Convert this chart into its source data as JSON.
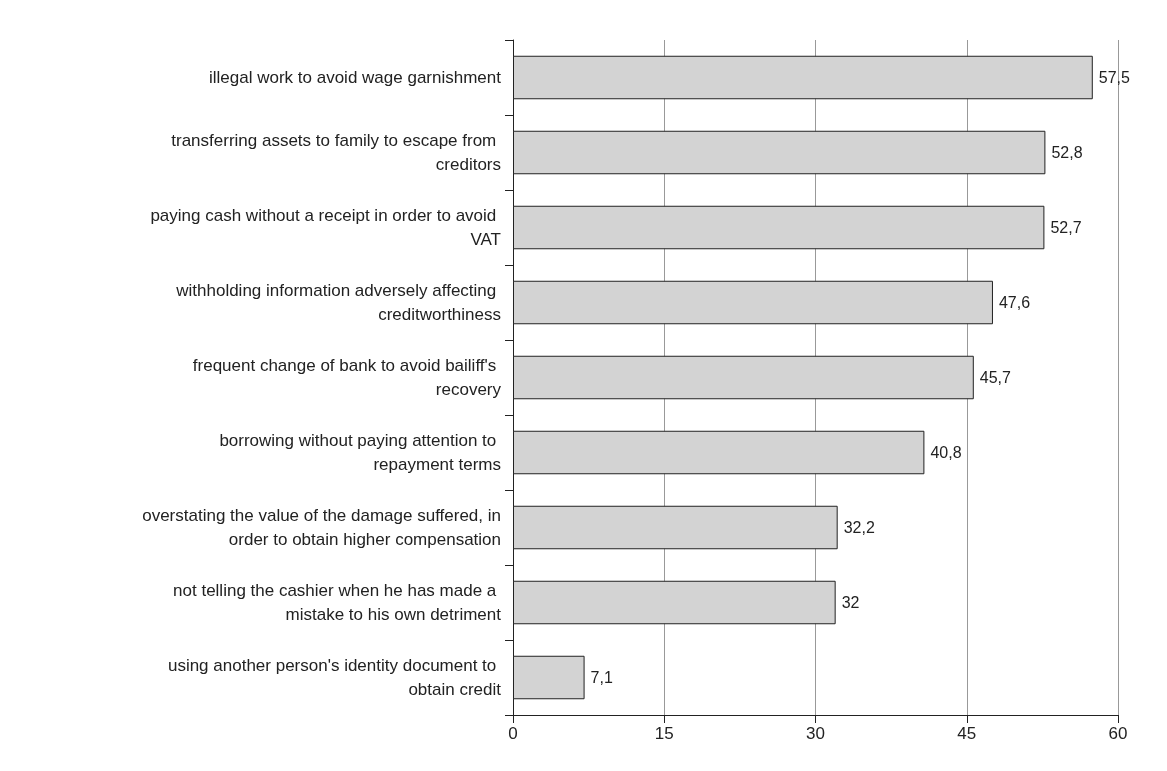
{
  "chart_data": {
    "type": "bar",
    "orientation": "horizontal",
    "categories": [
      "illegal work to avoid wage garnishment",
      "transferring assets to family to escape from creditors",
      "paying cash without a receipt in order to avoid VAT",
      "withholding information adversely affecting creditworthiness",
      "frequent change of bank to avoid bailiff's recovery",
      "borrowing without paying attention to repayment terms",
      "overstating the value of the damage suffered, in order to obtain higher compensation",
      "not telling the cashier when he has made a mistake to his own detriment",
      "using another person's identity document to obtain credit"
    ],
    "values": [
      57.5,
      52.8,
      52.7,
      47.6,
      45.7,
      40.8,
      32.2,
      32,
      7.1
    ],
    "value_labels": [
      "57,5",
      "52,8",
      "52,7",
      "47,6",
      "45,7",
      "40,8",
      "32,2",
      "32",
      "7,1"
    ],
    "color": "#d3d3d3",
    "xlim": [
      0,
      60
    ],
    "xticks": [
      0,
      15,
      30,
      45,
      60
    ],
    "grid": "x"
  }
}
